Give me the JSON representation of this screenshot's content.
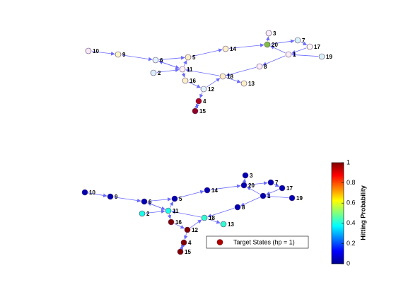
{
  "top_graph": {
    "nodes": [
      {
        "label": "10",
        "color": "#f7e8f7"
      },
      {
        "label": "9",
        "color": "#fbf6c8"
      },
      {
        "label": "6",
        "color": "#dff3fb"
      },
      {
        "label": "5",
        "color": "#fbf0c8"
      },
      {
        "label": "14",
        "color": "#fbf0c8"
      },
      {
        "label": "20",
        "color": "#7fbf3f"
      },
      {
        "label": "3",
        "color": "#f8eef8"
      },
      {
        "label": "7",
        "color": "#d8f3f8"
      },
      {
        "label": "17",
        "color": "#fdf6f6"
      },
      {
        "label": "1",
        "color": "#fbeef6"
      },
      {
        "label": "19",
        "color": "#d8f3f8"
      },
      {
        "label": "8",
        "color": "#fbeefb"
      },
      {
        "label": "2",
        "color": "#d8f0fb"
      },
      {
        "label": "11",
        "color": "#fdf2f8"
      },
      {
        "label": "16",
        "color": "#fbf0c8"
      },
      {
        "label": "18",
        "color": "#fbeec8"
      },
      {
        "label": "13",
        "color": "#fbf0c8"
      },
      {
        "label": "12",
        "color": "#e0f3fb"
      },
      {
        "label": "4",
        "color": "#b00020"
      },
      {
        "label": "15",
        "color": "#900020"
      }
    ]
  },
  "bottom_graph": {
    "nodes": [
      {
        "label": "10",
        "hitting_probability": 0.05
      },
      {
        "label": "9",
        "hitting_probability": 0.05
      },
      {
        "label": "6",
        "hitting_probability": 0.05
      },
      {
        "label": "5",
        "hitting_probability": 0.05
      },
      {
        "label": "14",
        "hitting_probability": 0.05
      },
      {
        "label": "20",
        "hitting_probability": 0.05
      },
      {
        "label": "3",
        "hitting_probability": 0.05
      },
      {
        "label": "7",
        "hitting_probability": 0.05
      },
      {
        "label": "17",
        "hitting_probability": 0.05
      },
      {
        "label": "1",
        "hitting_probability": 0.05
      },
      {
        "label": "19",
        "hitting_probability": 0.05
      },
      {
        "label": "8",
        "hitting_probability": 0.05
      },
      {
        "label": "2",
        "hitting_probability": 0.4
      },
      {
        "label": "11",
        "hitting_probability": 0.4
      },
      {
        "label": "16",
        "hitting_probability": 1
      },
      {
        "label": "18",
        "hitting_probability": 0.42
      },
      {
        "label": "13",
        "hitting_probability": 0.42
      },
      {
        "label": "12",
        "hitting_probability": 1
      },
      {
        "label": "4",
        "hitting_probability": 1
      },
      {
        "label": "15",
        "hitting_probability": 1
      }
    ],
    "legend": "Target States (hp = 1)",
    "colorbar": {
      "label": "Hitting Probability",
      "lim": [
        0,
        1
      ],
      "ticks": [
        0,
        0.2,
        0.4,
        0.6,
        0.8,
        1
      ]
    }
  }
}
